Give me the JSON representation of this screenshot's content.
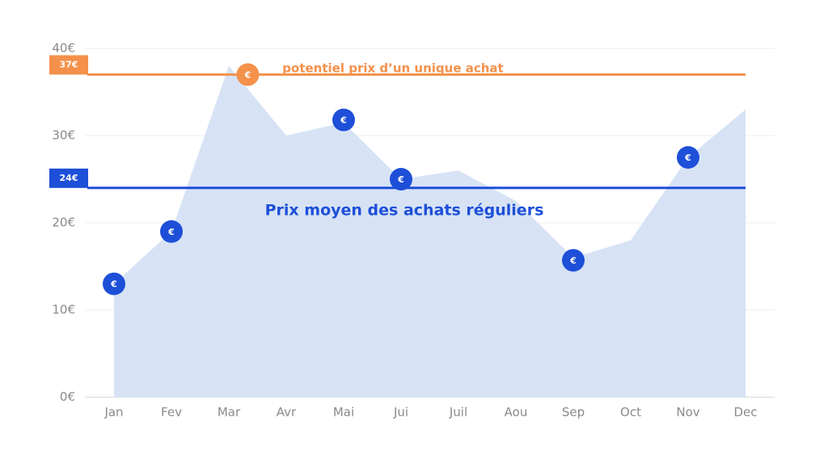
{
  "chart_data": {
    "type": "area",
    "categories": [
      "Jan",
      "Fev",
      "Mar",
      "Avr",
      "Mai",
      "Jui",
      "Juil",
      "Aou",
      "Sep",
      "Oct",
      "Nov",
      "Dec"
    ],
    "area": {
      "color": "#d7e3f5",
      "values": [
        13,
        19,
        38,
        30,
        31.5,
        25,
        26,
        22.5,
        16,
        18,
        27.5,
        33
      ]
    },
    "points": {
      "color": "#1d4fd8",
      "symbol": "€",
      "values": [
        13,
        19,
        null,
        null,
        31.8,
        25,
        null,
        null,
        15.7,
        null,
        27.5,
        null
      ]
    },
    "reference_lines": [
      {
        "value": 37,
        "label": "37€",
        "text": "potentiel prix d’un unique achat",
        "color": "#f4914b",
        "symbol": "€"
      },
      {
        "value": 24,
        "label": "24€",
        "text": "Prix moyen des achats réguliers",
        "color": "#1d4fd8"
      }
    ],
    "ylim": [
      0,
      40
    ],
    "yticks": [
      {
        "value": 0,
        "label": "0€"
      },
      {
        "value": 10,
        "label": "10€"
      },
      {
        "value": 20,
        "label": "20€"
      },
      {
        "value": 30,
        "label": "30€"
      },
      {
        "value": 40,
        "label": "40€"
      }
    ],
    "grid": true
  }
}
